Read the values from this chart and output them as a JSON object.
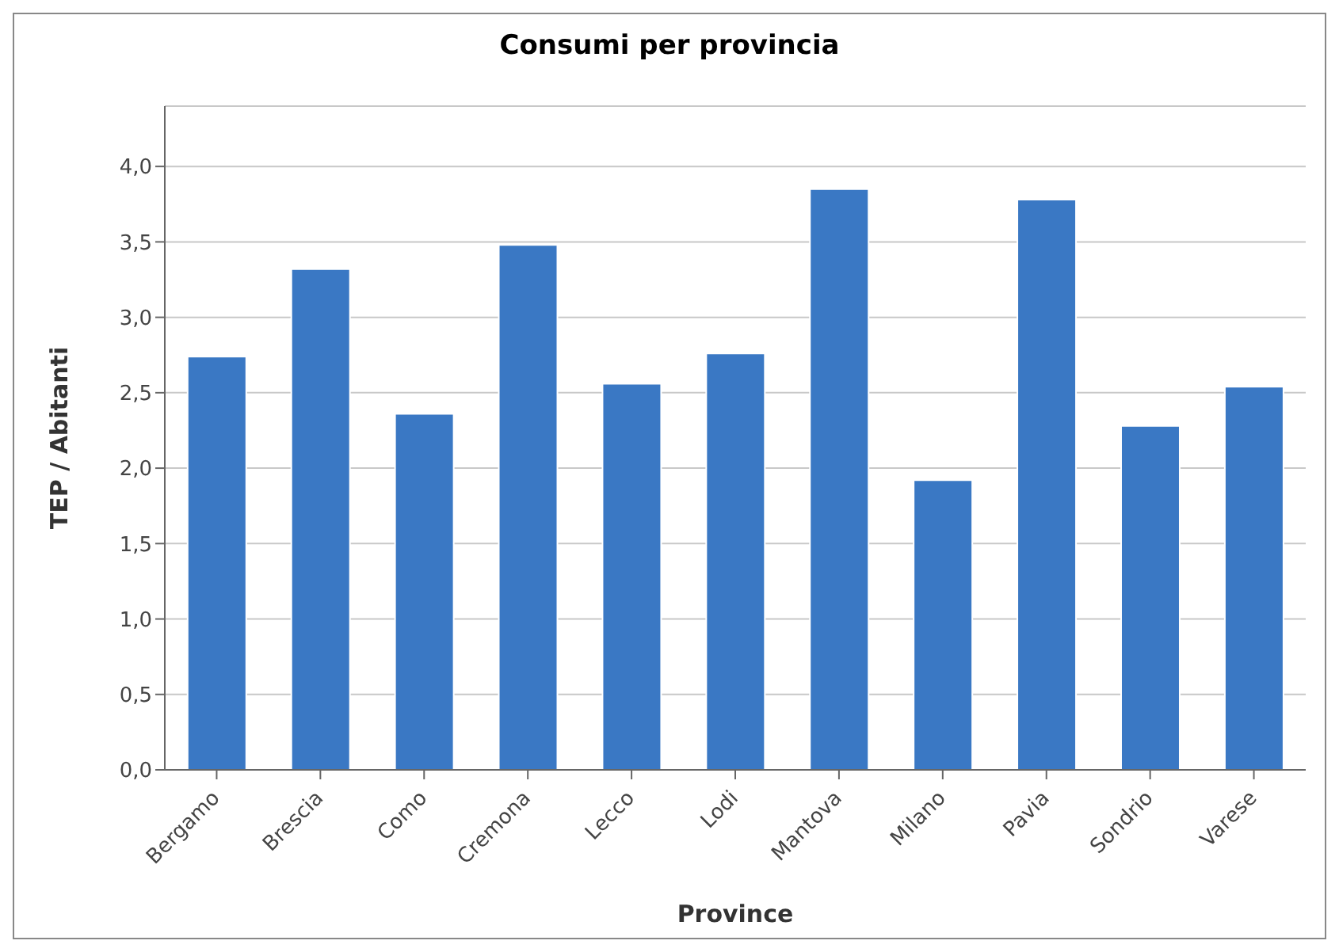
{
  "chart_data": {
    "type": "bar",
    "title": "Consumi per provincia",
    "xlabel": "Province",
    "ylabel": "TEP / Abitanti",
    "categories": [
      "Bergamo",
      "Brescia",
      "Como",
      "Cremona",
      "Lecco",
      "Lodi",
      "Mantova",
      "Milano",
      "Pavia",
      "Sondrio",
      "Varese"
    ],
    "values": [
      2.74,
      3.32,
      2.36,
      3.48,
      2.56,
      2.76,
      3.85,
      1.92,
      3.78,
      2.28,
      2.54
    ],
    "color": "#3a78c4",
    "ylim": [
      0,
      4.4
    ],
    "yticks": [
      {
        "value": 0,
        "label": "0,0"
      },
      {
        "value": 0.5,
        "label": "0,5"
      },
      {
        "value": 1,
        "label": "1,0"
      },
      {
        "value": 1.5,
        "label": "1,5"
      },
      {
        "value": 2,
        "label": "2,0"
      },
      {
        "value": 2.5,
        "label": "2,5"
      },
      {
        "value": 3,
        "label": "3,0"
      },
      {
        "value": 3.5,
        "label": "3,5"
      },
      {
        "value": 4,
        "label": "4,0"
      }
    ],
    "grid": "y",
    "legend": false
  }
}
